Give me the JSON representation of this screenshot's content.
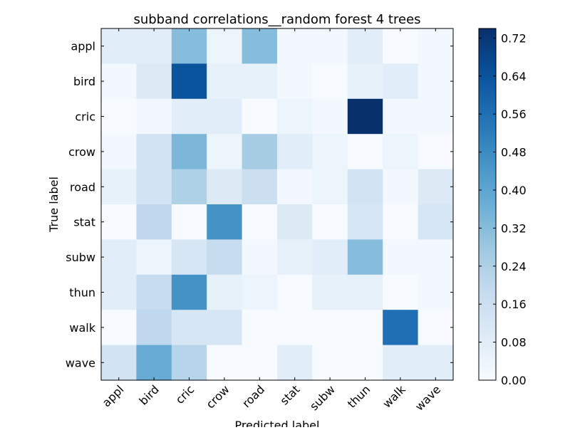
{
  "chart_data": {
    "type": "heatmap",
    "title": "subband correlations__random forest 4 trees",
    "xlabel": "Predicted label",
    "ylabel": "True label",
    "x_categories": [
      "appl",
      "bird",
      "cric",
      "crow",
      "road",
      "stat",
      "subw",
      "thun",
      "walk",
      "wave"
    ],
    "y_categories": [
      "appl",
      "bird",
      "cric",
      "crow",
      "road",
      "stat",
      "subw",
      "thun",
      "walk",
      "wave"
    ],
    "values": [
      [
        0.08,
        0.08,
        0.32,
        0.04,
        0.32,
        0.02,
        0.02,
        0.08,
        0.0,
        0.02
      ],
      [
        0.02,
        0.1,
        0.64,
        0.06,
        0.06,
        0.02,
        0.0,
        0.06,
        0.08,
        0.02
      ],
      [
        0.0,
        0.02,
        0.08,
        0.08,
        0.0,
        0.04,
        0.02,
        0.74,
        0.02,
        0.02
      ],
      [
        0.02,
        0.14,
        0.34,
        0.04,
        0.26,
        0.08,
        0.04,
        0.0,
        0.04,
        0.0
      ],
      [
        0.06,
        0.14,
        0.24,
        0.1,
        0.16,
        0.02,
        0.04,
        0.14,
        0.02,
        0.1
      ],
      [
        0.0,
        0.2,
        0.0,
        0.46,
        0.0,
        0.1,
        0.0,
        0.12,
        0.0,
        0.12
      ],
      [
        0.08,
        0.04,
        0.12,
        0.18,
        0.02,
        0.06,
        0.08,
        0.32,
        0.02,
        0.02
      ],
      [
        0.08,
        0.18,
        0.46,
        0.06,
        0.04,
        0.0,
        0.06,
        0.06,
        0.0,
        0.02
      ],
      [
        0.0,
        0.2,
        0.12,
        0.12,
        0.0,
        0.0,
        0.0,
        0.0,
        0.56,
        0.0
      ],
      [
        0.14,
        0.38,
        0.22,
        0.0,
        0.0,
        0.08,
        0.0,
        0.0,
        0.08,
        0.08
      ]
    ],
    "colorbar": {
      "min": 0.0,
      "max": 0.74,
      "ticks": [
        "0.00",
        "0.08",
        "0.16",
        "0.24",
        "0.32",
        "0.40",
        "0.48",
        "0.56",
        "0.64",
        "0.72"
      ],
      "colormap": "Blues"
    }
  }
}
